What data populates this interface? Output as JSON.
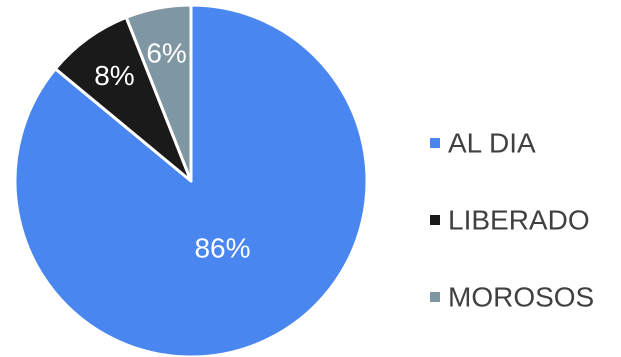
{
  "chart_data": {
    "type": "pie",
    "title": "",
    "legend_position": "right",
    "slices": [
      {
        "name": "AL DIA",
        "value": 86,
        "label": "86%",
        "color": "#4a86f0",
        "label_color": "#ffffff"
      },
      {
        "name": "LIBERADO",
        "value": 8,
        "label": "8%",
        "color": "#1a1a1a",
        "label_color": "#ffffff"
      },
      {
        "name": "MOROSOS",
        "value": 6,
        "label": "6%",
        "color": "#7f97a3",
        "label_color": "#ffffff"
      }
    ]
  }
}
